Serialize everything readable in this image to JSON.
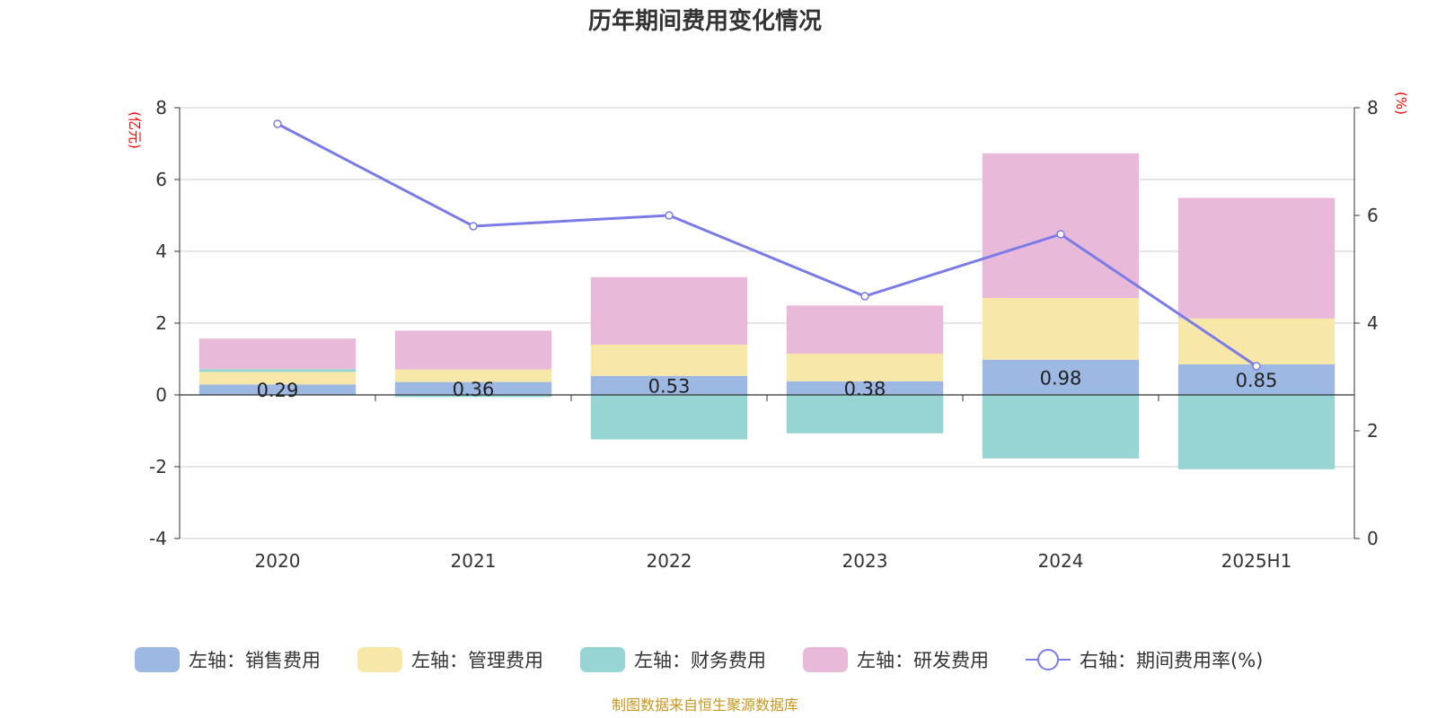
{
  "colors": {
    "sales": "#9db8e3",
    "admin": "#f7e7a8",
    "finance": "#97d4d4",
    "rnd": "#e8b9d9",
    "rate": "#7b7be8",
    "unit": "#ff0000",
    "source": "#c8961e"
  },
  "chart_data": {
    "type": "bar",
    "title": "历年期间费用变化情况",
    "categories": [
      "2020",
      "2021",
      "2022",
      "2023",
      "2024",
      "2025H1"
    ],
    "y_left": {
      "unit": "(亿元)",
      "range": [
        -4,
        8
      ],
      "ticks": [
        -4,
        -2,
        0,
        2,
        4,
        6,
        8
      ]
    },
    "y_right": {
      "unit": "(%)",
      "range": [
        0,
        8
      ],
      "ticks": [
        0,
        2,
        4,
        6,
        8
      ]
    },
    "grid": true,
    "stacked": true,
    "series": [
      {
        "name": "左轴：销售费用",
        "key": "sales",
        "axis": "left",
        "type": "bar",
        "values": [
          0.29,
          0.36,
          0.53,
          0.38,
          0.98,
          0.85
        ],
        "labels": [
          "0.29",
          "0.36",
          "0.53",
          "0.38",
          "0.98",
          "0.85"
        ]
      },
      {
        "name": "左轴：管理费用",
        "key": "admin",
        "axis": "left",
        "type": "bar",
        "values": [
          0.35,
          0.35,
          0.87,
          0.77,
          1.72,
          1.28
        ]
      },
      {
        "name": "左轴：财务费用",
        "key": "finance",
        "axis": "left",
        "type": "bar",
        "values": [
          0.08,
          -0.06,
          -1.24,
          -1.07,
          -1.77,
          -2.07
        ]
      },
      {
        "name": "左轴：研发费用",
        "key": "rnd",
        "axis": "left",
        "type": "bar",
        "values": [
          0.85,
          1.08,
          1.88,
          1.34,
          4.03,
          3.36
        ]
      },
      {
        "name": "右轴：期间费用率(%)",
        "key": "rate",
        "axis": "right",
        "type": "line",
        "values": [
          7.7,
          5.8,
          6.0,
          4.5,
          5.65,
          3.2
        ]
      }
    ],
    "legend_position": "bottom",
    "source": "制图数据来自恒生聚源数据库"
  }
}
